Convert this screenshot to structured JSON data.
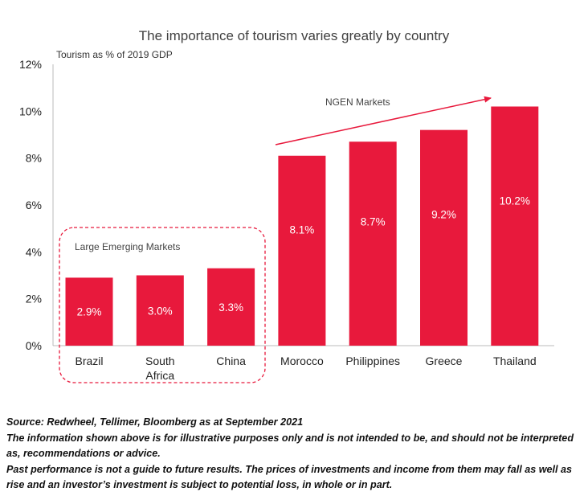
{
  "chart_data": {
    "type": "bar",
    "title": "The importance of tourism varies greatly by country",
    "ylabel": "Tourism as % of 2019 GDP",
    "xlabel": "",
    "categories": [
      "Brazil",
      "South Africa",
      "China",
      "Morocco",
      "Philippines",
      "Greece",
      "Thailand"
    ],
    "category_lines": [
      [
        "Brazil"
      ],
      [
        "South",
        "Africa"
      ],
      [
        "China"
      ],
      [
        "Morocco"
      ],
      [
        "Philippines"
      ],
      [
        "Greece"
      ],
      [
        "Thailand"
      ]
    ],
    "values": [
      2.9,
      3.0,
      3.3,
      8.1,
      8.7,
      9.2,
      10.2
    ],
    "data_labels": [
      "2.9%",
      "3.0%",
      "3.3%",
      "8.1%",
      "8.7%",
      "9.2%",
      "10.2%"
    ],
    "ylim": [
      0,
      12
    ],
    "yticks": [
      0,
      2,
      4,
      6,
      8,
      10,
      12
    ],
    "ytick_labels": [
      "0%",
      "2%",
      "4%",
      "6%",
      "8%",
      "10%",
      "12%"
    ],
    "bar_color": "#e8193c",
    "grid": false,
    "annotations": {
      "group_box_label": "Large Emerging Markets",
      "arrow_label": "NGEN Markets"
    }
  },
  "notes": {
    "source": "Source: Redwheel, Tellimer, Bloomberg as at September 2021",
    "disclaimer_1": "The information shown above is for illustrative purposes only and is not intended to be, and should not be interpreted as, recommendations or advice.",
    "disclaimer_2": "Past performance is not a guide to future results. The prices of investments and income from them may fall as well as rise and an investor’s investment is subject to potential loss, in whole or in part."
  }
}
